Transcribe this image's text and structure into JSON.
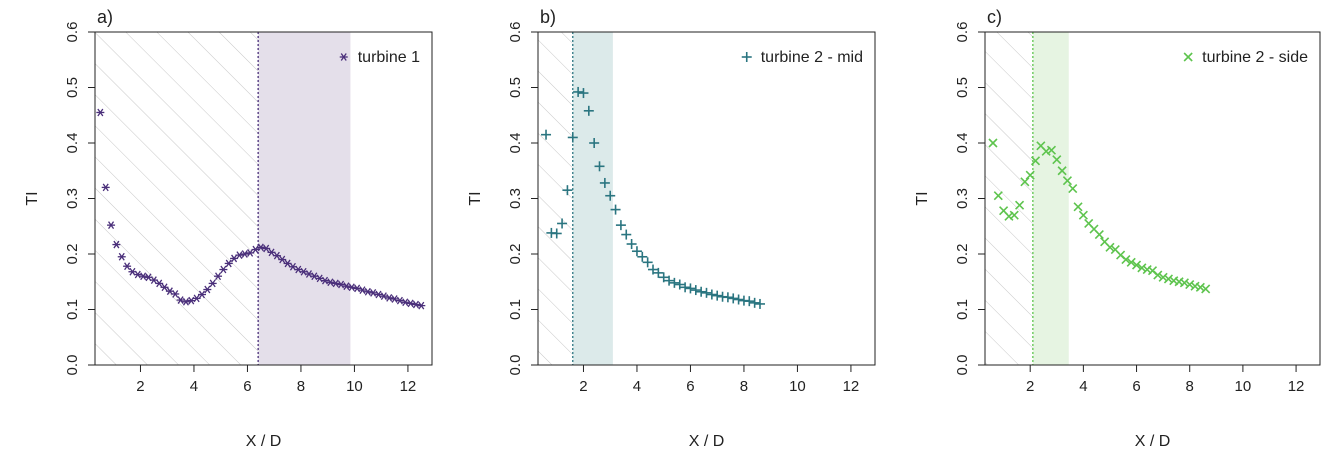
{
  "chart_data": [
    {
      "type": "scatter",
      "panel_label": "a)",
      "xlabel": "X / D",
      "ylabel": "TI",
      "xlim": [
        0.3,
        12.9
      ],
      "ylim": [
        0,
        0.6
      ],
      "xticks": [
        2,
        4,
        6,
        8,
        10,
        12
      ],
      "yticks": [
        0.0,
        0.1,
        0.2,
        0.3,
        0.4,
        0.5,
        0.6
      ],
      "color": "#4a2f7a",
      "band_color": "#e4dfea",
      "hatch_range": [
        0.3,
        6.4
      ],
      "shaded_range": [
        6.4,
        9.85
      ],
      "vline": 6.4,
      "series": [
        {
          "name": "turbine 1",
          "marker": "*",
          "x": [
            0.5,
            0.7,
            0.9,
            1.1,
            1.3,
            1.5,
            1.7,
            1.9,
            2.1,
            2.3,
            2.5,
            2.7,
            2.9,
            3.1,
            3.3,
            3.5,
            3.7,
            3.9,
            4.1,
            4.3,
            4.5,
            4.7,
            4.9,
            5.1,
            5.3,
            5.5,
            5.7,
            5.9,
            6.1,
            6.3,
            6.5,
            6.7,
            6.9,
            7.1,
            7.3,
            7.5,
            7.7,
            7.9,
            8.1,
            8.3,
            8.5,
            8.7,
            8.9,
            9.1,
            9.3,
            9.5,
            9.7,
            9.9,
            10.1,
            10.3,
            10.5,
            10.7,
            10.9,
            11.1,
            11.3,
            11.5,
            11.7,
            11.9,
            12.1,
            12.3,
            12.5
          ],
          "y": [
            0.455,
            0.32,
            0.252,
            0.217,
            0.195,
            0.178,
            0.168,
            0.163,
            0.16,
            0.158,
            0.153,
            0.147,
            0.14,
            0.133,
            0.128,
            0.117,
            0.114,
            0.116,
            0.12,
            0.127,
            0.136,
            0.147,
            0.16,
            0.172,
            0.183,
            0.192,
            0.198,
            0.2,
            0.202,
            0.208,
            0.212,
            0.21,
            0.203,
            0.197,
            0.19,
            0.183,
            0.177,
            0.172,
            0.168,
            0.164,
            0.16,
            0.156,
            0.152,
            0.149,
            0.147,
            0.145,
            0.142,
            0.14,
            0.138,
            0.135,
            0.132,
            0.13,
            0.127,
            0.124,
            0.121,
            0.119,
            0.116,
            0.113,
            0.111,
            0.109,
            0.107
          ]
        }
      ]
    },
    {
      "type": "scatter",
      "panel_label": "b)",
      "xlabel": "X / D",
      "ylabel": "TI",
      "xlim": [
        0.3,
        12.9
      ],
      "ylim": [
        0,
        0.6
      ],
      "xticks": [
        2,
        4,
        6,
        8,
        10,
        12
      ],
      "yticks": [
        0.0,
        0.1,
        0.2,
        0.3,
        0.4,
        0.5,
        0.6
      ],
      "color": "#2a7580",
      "band_color": "#dceaea",
      "hatch_range": [
        0.3,
        1.6
      ],
      "shaded_range": [
        1.6,
        3.1
      ],
      "vline": 1.6,
      "series": [
        {
          "name": "turbine 2 - mid",
          "marker": "+",
          "x": [
            0.6,
            0.8,
            1.0,
            1.2,
            1.4,
            1.6,
            1.8,
            2.0,
            2.2,
            2.4,
            2.6,
            2.8,
            3.0,
            3.2,
            3.4,
            3.6,
            3.8,
            4.0,
            4.2,
            4.4,
            4.6,
            4.8,
            5.0,
            5.2,
            5.4,
            5.6,
            5.8,
            6.0,
            6.2,
            6.4,
            6.6,
            6.8,
            7.0,
            7.2,
            7.4,
            7.6,
            7.8,
            8.0,
            8.2,
            8.4,
            8.6
          ],
          "y": [
            0.415,
            0.238,
            0.237,
            0.255,
            0.315,
            0.41,
            0.492,
            0.49,
            0.458,
            0.4,
            0.358,
            0.328,
            0.305,
            0.28,
            0.252,
            0.235,
            0.218,
            0.205,
            0.195,
            0.185,
            0.172,
            0.166,
            0.158,
            0.152,
            0.148,
            0.145,
            0.14,
            0.138,
            0.135,
            0.132,
            0.13,
            0.127,
            0.125,
            0.123,
            0.122,
            0.12,
            0.118,
            0.116,
            0.115,
            0.112,
            0.11
          ]
        }
      ]
    },
    {
      "type": "scatter",
      "panel_label": "c)",
      "xlabel": "X / D",
      "ylabel": "TI",
      "xlim": [
        0.3,
        12.9
      ],
      "ylim": [
        0,
        0.6
      ],
      "xticks": [
        2,
        4,
        6,
        8,
        10,
        12
      ],
      "yticks": [
        0.0,
        0.1,
        0.2,
        0.3,
        0.4,
        0.5,
        0.6
      ],
      "color": "#5ec44e",
      "band_color": "#e6f4e2",
      "hatch_range": [
        0.3,
        2.1
      ],
      "shaded_range": [
        2.1,
        3.45
      ],
      "vline": 2.1,
      "series": [
        {
          "name": "turbine 2 - side",
          "marker": "x",
          "x": [
            0.6,
            0.8,
            1.0,
            1.2,
            1.4,
            1.6,
            1.8,
            2.0,
            2.2,
            2.4,
            2.6,
            2.8,
            3.0,
            3.2,
            3.4,
            3.6,
            3.8,
            4.0,
            4.2,
            4.4,
            4.6,
            4.8,
            5.0,
            5.2,
            5.4,
            5.6,
            5.8,
            6.0,
            6.2,
            6.4,
            6.6,
            6.8,
            7.0,
            7.2,
            7.4,
            7.6,
            7.8,
            8.0,
            8.2,
            8.4,
            8.6
          ],
          "y": [
            0.4,
            0.305,
            0.278,
            0.268,
            0.27,
            0.288,
            0.33,
            0.342,
            0.368,
            0.395,
            0.385,
            0.387,
            0.37,
            0.35,
            0.332,
            0.318,
            0.285,
            0.27,
            0.255,
            0.245,
            0.235,
            0.222,
            0.212,
            0.208,
            0.198,
            0.19,
            0.185,
            0.18,
            0.175,
            0.172,
            0.17,
            0.162,
            0.158,
            0.155,
            0.152,
            0.15,
            0.148,
            0.145,
            0.142,
            0.14,
            0.137
          ]
        }
      ]
    }
  ]
}
